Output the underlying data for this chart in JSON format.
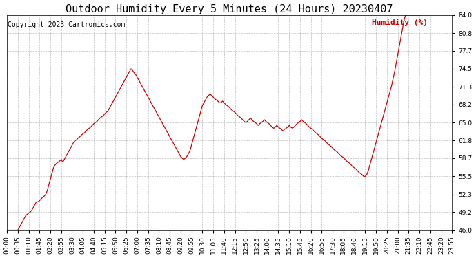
{
  "title": "Outdoor Humidity Every 5 Minutes (24 Hours) 20230407",
  "copyright": "Copyright 2023 Cartronics.com",
  "legend_label": "Humidity (%)",
  "line_color": "#cc0000",
  "legend_color": "#cc0000",
  "background_color": "#ffffff",
  "grid_color": "#999999",
  "grid_style": "--",
  "title_fontsize": 11,
  "copyright_fontsize": 7,
  "tick_fontsize": 6.5,
  "legend_fontsize": 8,
  "ylim": [
    46.0,
    84.0
  ],
  "yticks": [
    46.0,
    49.2,
    52.3,
    55.5,
    58.7,
    61.8,
    65.0,
    68.2,
    71.3,
    74.5,
    77.7,
    80.8,
    84.0
  ],
  "humidity_values": [
    46.0,
    46.0,
    46.0,
    46.0,
    46.0,
    46.0,
    46.0,
    46.0,
    46.5,
    47.0,
    47.5,
    48.0,
    48.5,
    48.8,
    49.0,
    49.2,
    49.5,
    50.0,
    50.5,
    51.0,
    51.0,
    51.2,
    51.5,
    51.8,
    52.0,
    52.3,
    53.0,
    54.0,
    55.0,
    56.0,
    57.0,
    57.5,
    57.8,
    58.0,
    58.2,
    58.5,
    58.0,
    58.5,
    59.0,
    59.5,
    60.0,
    60.5,
    61.0,
    61.5,
    61.8,
    62.0,
    62.3,
    62.5,
    62.8,
    63.0,
    63.2,
    63.5,
    63.8,
    64.0,
    64.2,
    64.5,
    64.8,
    65.0,
    65.2,
    65.5,
    65.8,
    66.0,
    66.2,
    66.5,
    66.8,
    67.0,
    67.5,
    68.0,
    68.5,
    69.0,
    69.5,
    70.0,
    70.5,
    71.0,
    71.5,
    72.0,
    72.5,
    73.0,
    73.5,
    74.0,
    74.5,
    74.2,
    73.8,
    73.5,
    73.0,
    72.5,
    72.0,
    71.5,
    71.0,
    70.5,
    70.0,
    69.5,
    69.0,
    68.5,
    68.0,
    67.5,
    67.0,
    66.5,
    66.0,
    65.5,
    65.0,
    64.5,
    64.0,
    63.5,
    63.0,
    62.5,
    62.0,
    61.5,
    61.0,
    60.5,
    60.0,
    59.5,
    59.0,
    58.7,
    58.5,
    58.7,
    59.0,
    59.5,
    60.0,
    61.0,
    62.0,
    63.0,
    64.0,
    65.0,
    66.0,
    67.0,
    68.0,
    68.5,
    69.0,
    69.5,
    69.8,
    70.0,
    69.8,
    69.5,
    69.2,
    69.0,
    68.8,
    68.5,
    68.5,
    68.8,
    68.5,
    68.2,
    68.0,
    67.8,
    67.5,
    67.2,
    67.0,
    66.8,
    66.5,
    66.2,
    66.0,
    65.8,
    65.5,
    65.2,
    65.0,
    65.2,
    65.5,
    65.8,
    65.5,
    65.2,
    65.0,
    64.8,
    64.5,
    64.8,
    65.0,
    65.2,
    65.5,
    65.2,
    65.0,
    64.8,
    64.5,
    64.2,
    64.0,
    64.2,
    64.5,
    64.2,
    64.0,
    63.8,
    63.5,
    63.8,
    64.0,
    64.2,
    64.5,
    64.2,
    64.0,
    64.2,
    64.5,
    64.8,
    65.0,
    65.2,
    65.5,
    65.2,
    65.0,
    64.8,
    64.5,
    64.2,
    64.0,
    63.8,
    63.5,
    63.2,
    63.0,
    62.8,
    62.5,
    62.2,
    62.0,
    61.8,
    61.5,
    61.2,
    61.0,
    60.8,
    60.5,
    60.2,
    60.0,
    59.8,
    59.5,
    59.2,
    59.0,
    58.8,
    58.5,
    58.2,
    58.0,
    57.8,
    57.5,
    57.2,
    57.0,
    56.8,
    56.5,
    56.2,
    56.0,
    55.8,
    55.5,
    55.5,
    55.8,
    56.5,
    57.5,
    58.5,
    59.5,
    60.5,
    61.5,
    62.5,
    63.5,
    64.5,
    65.5,
    66.5,
    67.5,
    68.5,
    69.5,
    70.5,
    71.5,
    72.8,
    74.0,
    75.5,
    77.0,
    78.5,
    80.0,
    81.5,
    83.0,
    84.0,
    84.0,
    84.0,
    84.0,
    84.0,
    84.0,
    84.0,
    84.0,
    84.0,
    84.0,
    84.0
  ]
}
